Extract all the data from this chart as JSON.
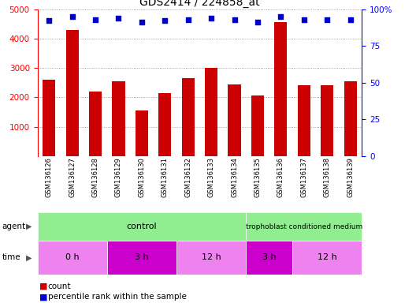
{
  "title": "GDS2414 / 224858_at",
  "samples": [
    "GSM136126",
    "GSM136127",
    "GSM136128",
    "GSM136129",
    "GSM136130",
    "GSM136131",
    "GSM136132",
    "GSM136133",
    "GSM136134",
    "GSM136135",
    "GSM136136",
    "GSM136137",
    "GSM136138",
    "GSM136139"
  ],
  "counts": [
    2600,
    4300,
    2200,
    2550,
    1550,
    2150,
    2650,
    3000,
    2450,
    2050,
    4550,
    2400,
    2400,
    2550
  ],
  "percentile_ranks": [
    92,
    95,
    93,
    94,
    91,
    92,
    93,
    94,
    93,
    91,
    95,
    93,
    93,
    93
  ],
  "bar_color": "#cc0000",
  "dot_color": "#0000cc",
  "ylim_left": [
    0,
    5000
  ],
  "ylim_right": [
    0,
    100
  ],
  "yticks_left": [
    1000,
    2000,
    3000,
    4000,
    5000
  ],
  "yticks_right": [
    0,
    25,
    50,
    75,
    100
  ],
  "control_count": 9,
  "tropho_count": 5,
  "time_labels": [
    "0 h",
    "3 h",
    "12 h",
    "3 h",
    "12 h"
  ],
  "time_widths": [
    3,
    3,
    3,
    2,
    3
  ],
  "time_colors": [
    "#EE82EE",
    "#CC00CC",
    "#EE82EE",
    "#CC00CC",
    "#EE82EE"
  ],
  "agent_control_color": "#90EE90",
  "agent_tropho_color": "#90EE90",
  "label_bg": "#cccccc",
  "bg_color": "#ffffff",
  "grid_color": "#888888"
}
